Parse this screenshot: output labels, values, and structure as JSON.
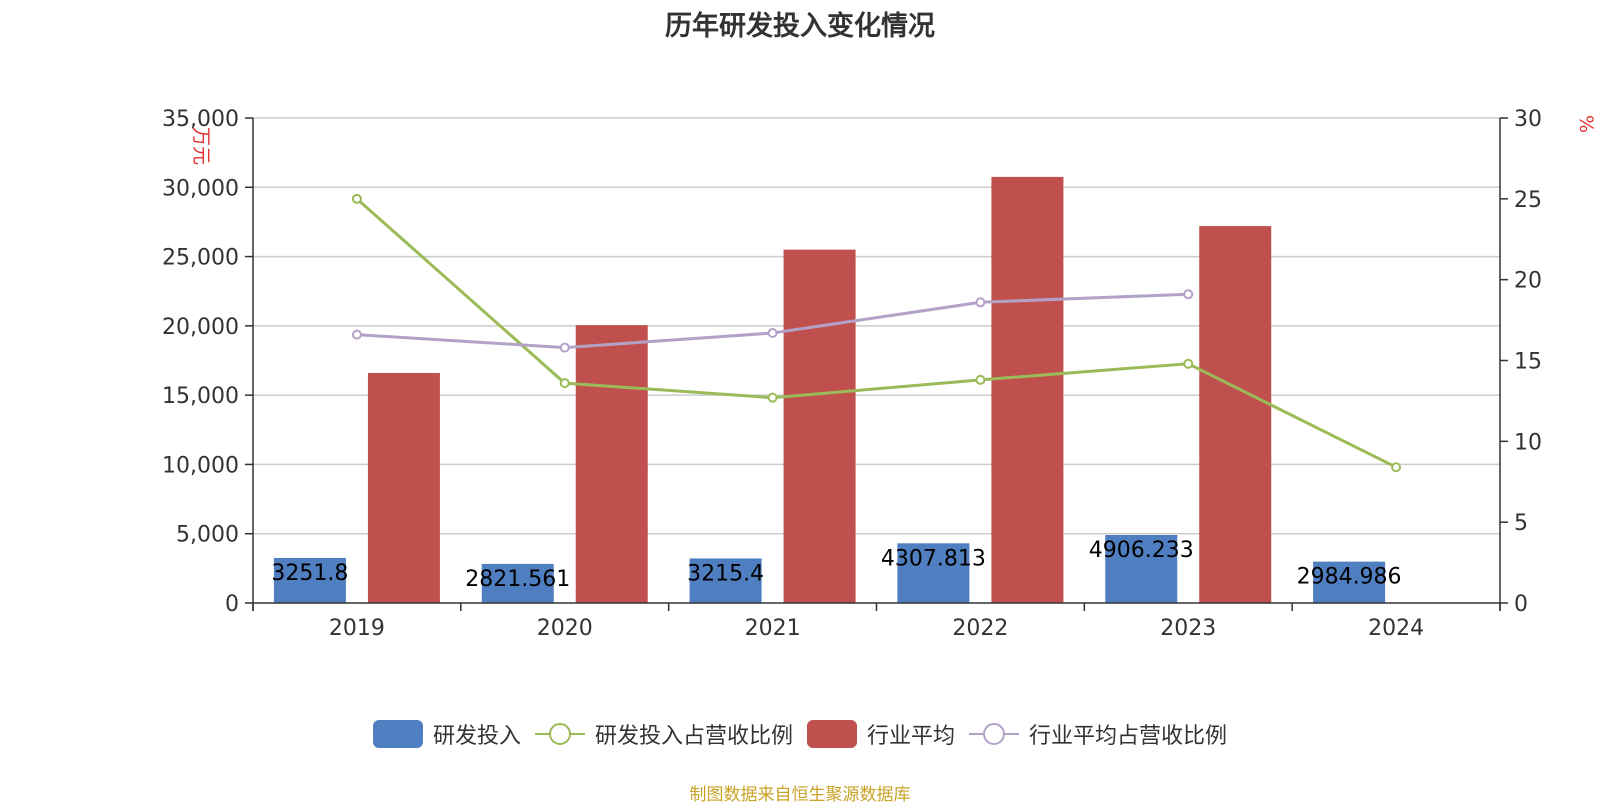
{
  "title": "历年研发投入变化情况",
  "source": "制图数据来自恒生聚源数据库",
  "chart_data": {
    "type": "bar",
    "title": "历年研发投入变化情况",
    "categories": [
      "2019",
      "2020",
      "2021",
      "2022",
      "2023",
      "2024"
    ],
    "y_left": {
      "label": "万元",
      "ticks": [
        0,
        5000,
        10000,
        15000,
        20000,
        25000,
        30000,
        35000
      ],
      "ylim": [
        0,
        35000
      ]
    },
    "y_right": {
      "label": "%",
      "ticks": [
        0,
        5,
        10,
        15,
        20,
        25,
        30
      ],
      "ylim": [
        0,
        30
      ]
    },
    "series": [
      {
        "name": "研发投入",
        "type": "bar",
        "axis": "left",
        "color": "#4f7fc1",
        "values": [
          3251.8,
          2821.561,
          3215.4,
          4307.813,
          4906.233,
          2984.986
        ],
        "labels": [
          "3251.8",
          "2821.561",
          "3215.4",
          "4307.813",
          "4906.233",
          "2984.986"
        ]
      },
      {
        "name": "研发投入占营收比例",
        "type": "line",
        "axis": "right",
        "color": "#9bbb59",
        "values": [
          25.0,
          13.6,
          12.7,
          13.8,
          14.8,
          8.4
        ]
      },
      {
        "name": "行业平均",
        "type": "bar",
        "axis": "left",
        "color": "#c0504d",
        "values": [
          16600,
          20050,
          25500,
          30750,
          27200,
          null
        ]
      },
      {
        "name": "行业平均占营收比例",
        "type": "line",
        "axis": "right",
        "color": "#b3a2c7",
        "values": [
          16.6,
          15.8,
          16.7,
          18.6,
          19.1,
          null
        ]
      }
    ],
    "grid": true,
    "legend_position": "bottom"
  }
}
